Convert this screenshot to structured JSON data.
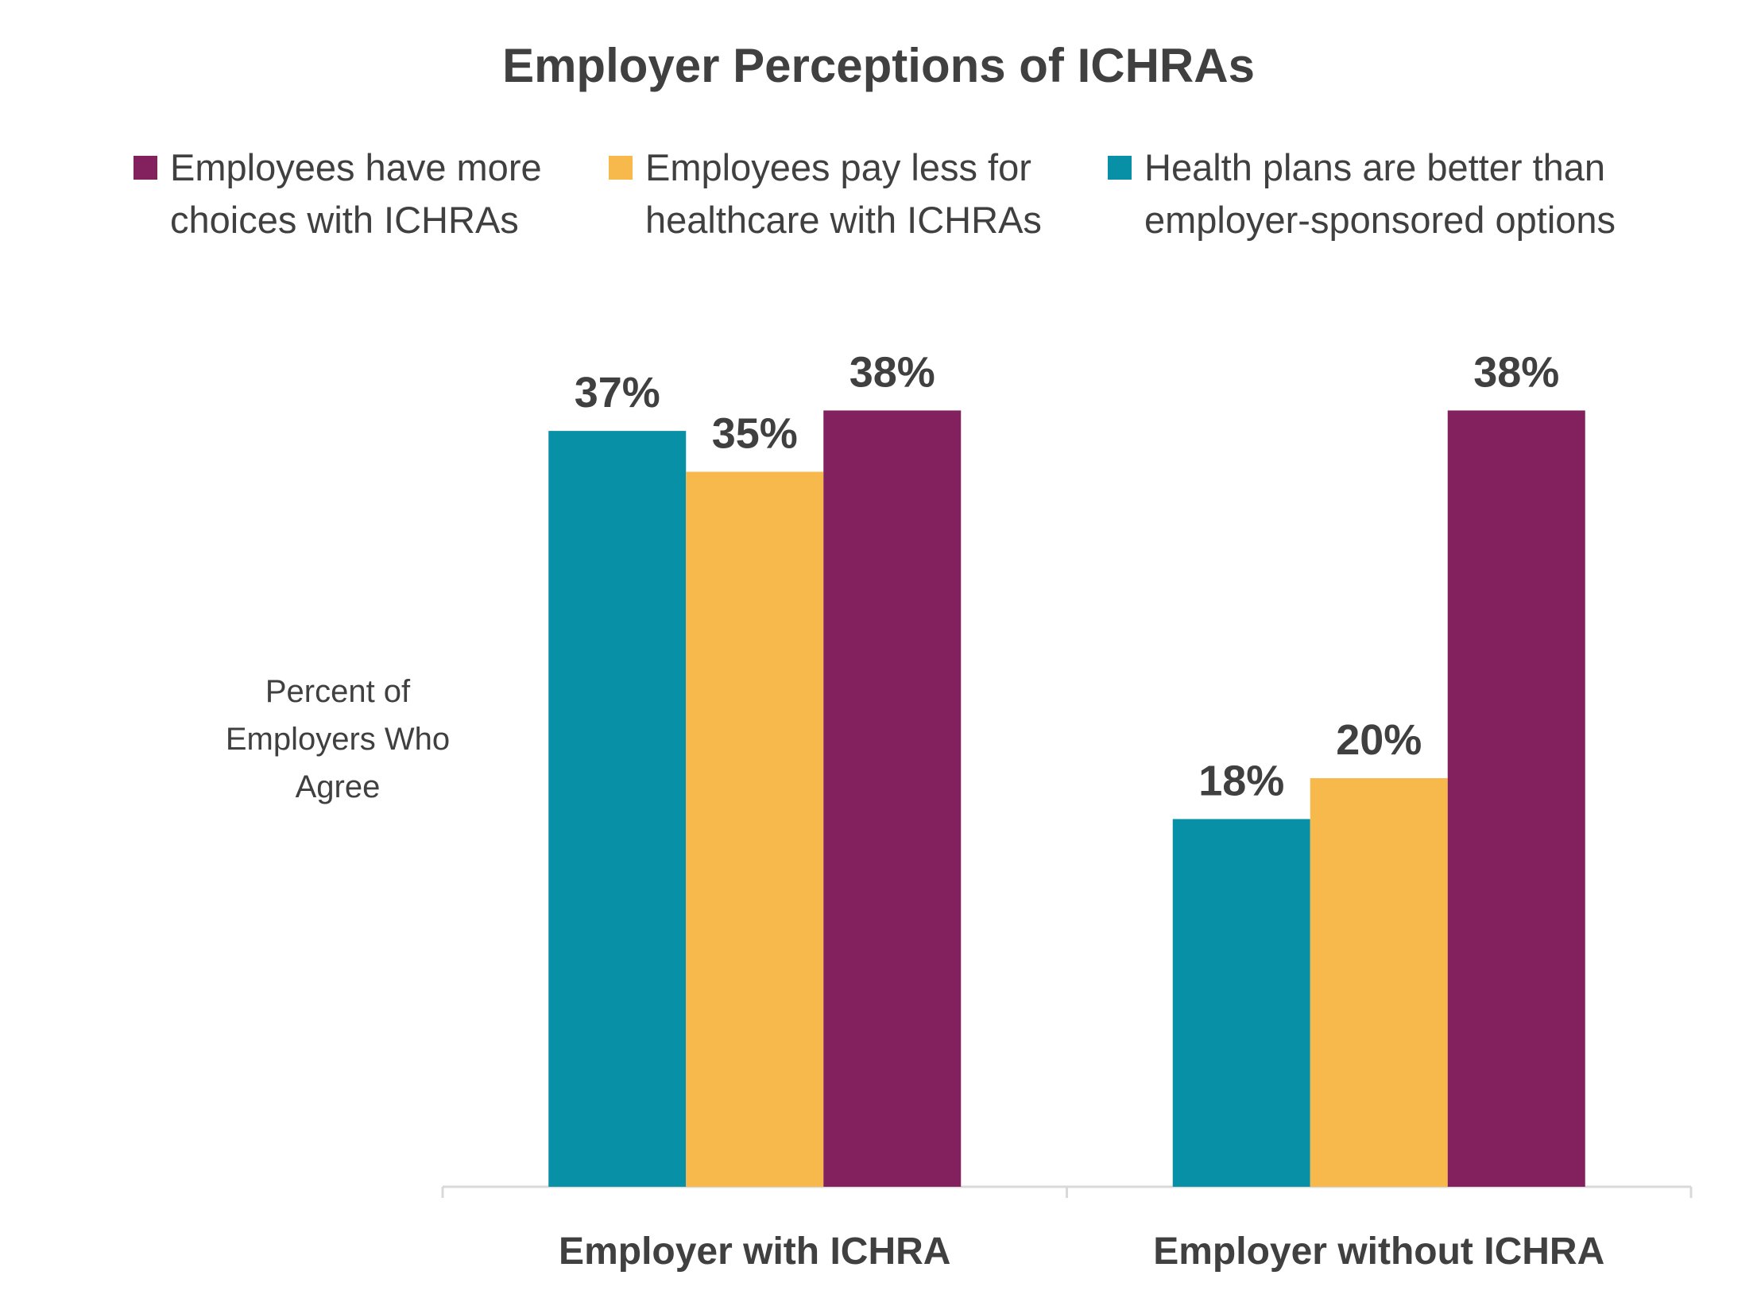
{
  "chart_data": {
    "type": "bar",
    "title": "Employer Perceptions of ICHRAs",
    "ylabel": "Percent of\nEmployers Who\nAgree",
    "xlabel": "",
    "categories": [
      "Employer with ICHRA",
      "Employer without ICHRA"
    ],
    "legend_placement": "top",
    "legend": [
      {
        "name": "Employees have more\nchoices with ICHRAs",
        "color": "#83205E"
      },
      {
        "name": "Employees pay less for\nhealthcare with ICHRAs",
        "color": "#F7B94C"
      },
      {
        "name": "Health plans are better than\nemployer-sponsored options",
        "color": "#0891A6"
      }
    ],
    "series": [
      {
        "name": "Health plans are better than employer-sponsored options",
        "color": "#0891A6",
        "values": [
          37,
          18
        ],
        "labels": [
          "37%",
          "18%"
        ]
      },
      {
        "name": "Employees pay less for healthcare with ICHRAs",
        "color": "#F7B94C",
        "values": [
          35,
          20
        ],
        "labels": [
          "35%",
          "20%"
        ]
      },
      {
        "name": "Employees have more choices with ICHRAs",
        "color": "#83205E",
        "values": [
          38,
          38
        ],
        "labels": [
          "38%",
          "38%"
        ]
      }
    ],
    "ylim": [
      0,
      50
    ],
    "grid": false
  }
}
